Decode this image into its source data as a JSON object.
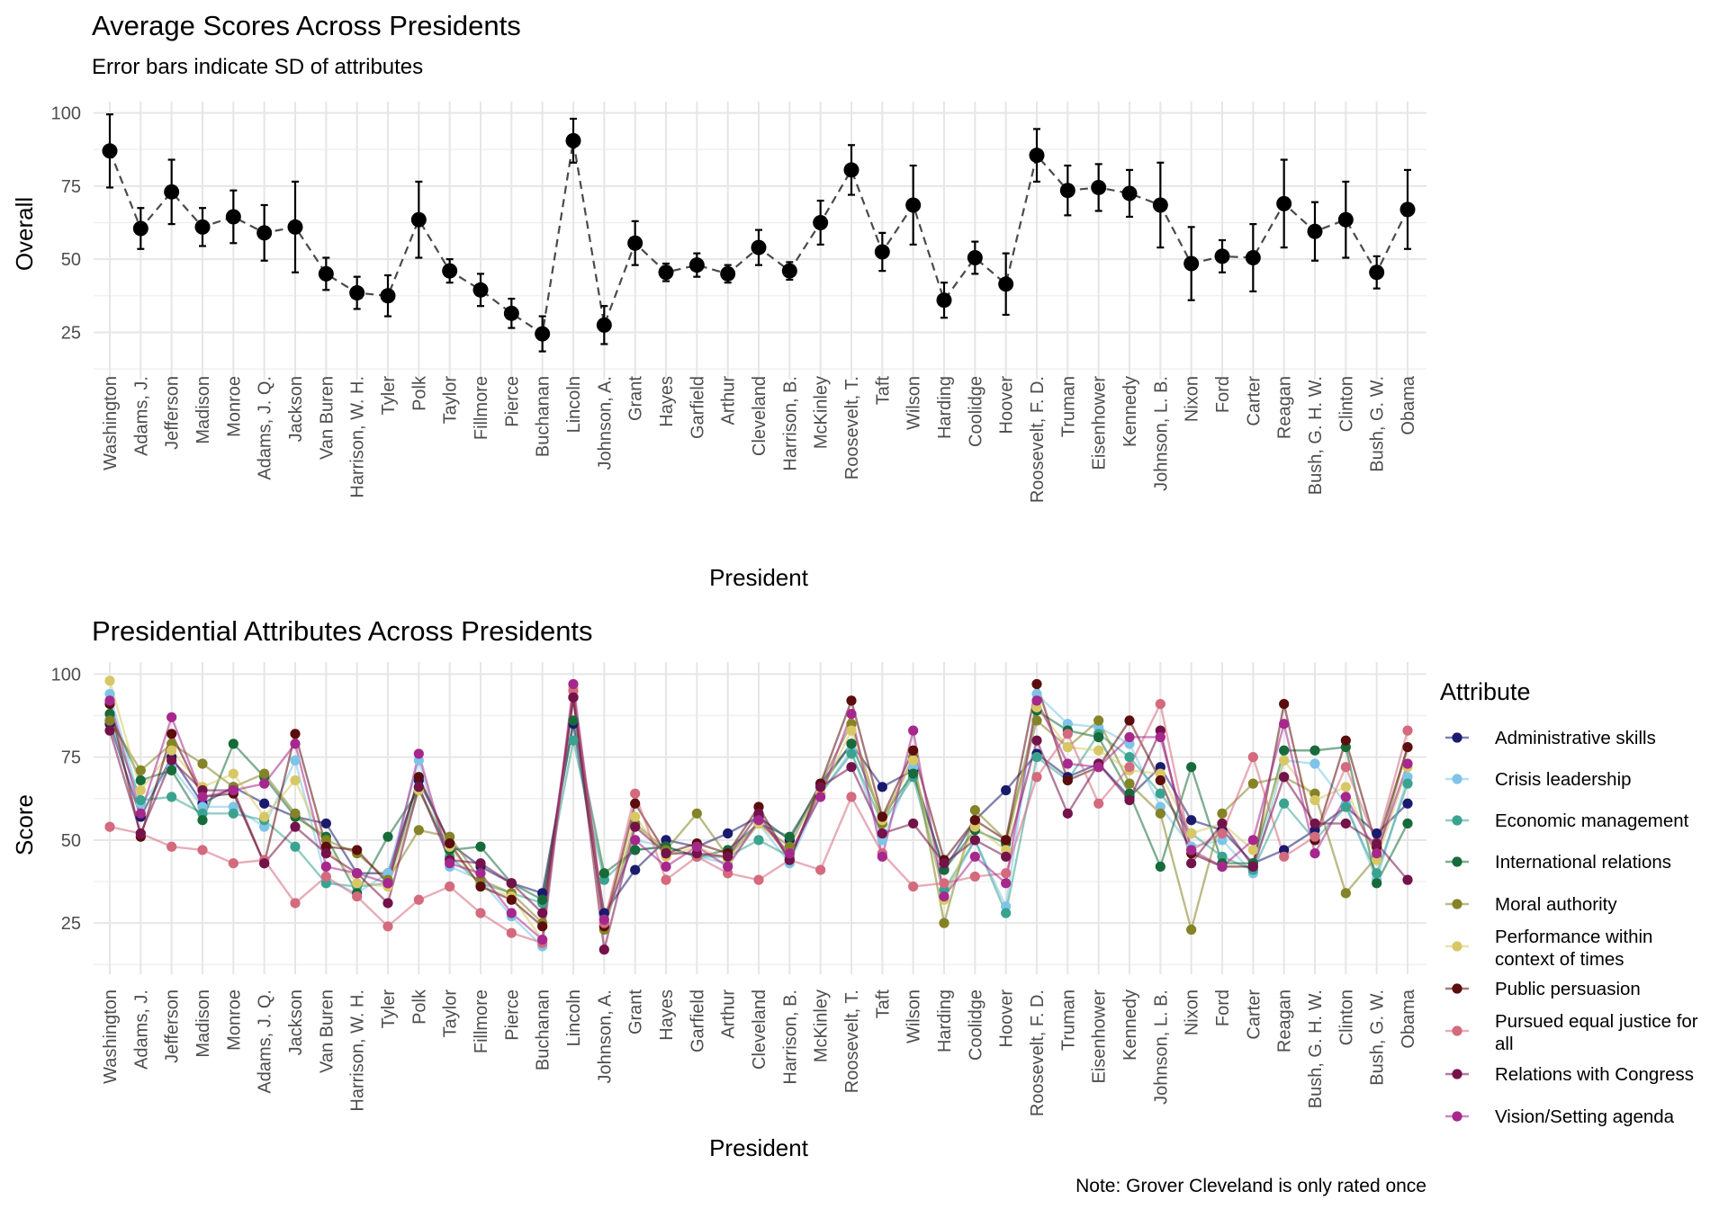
{
  "presidents": [
    "Washington",
    "Adams, J.",
    "Jefferson",
    "Madison",
    "Monroe",
    "Adams, J. Q.",
    "Jackson",
    "Van Buren",
    "Harrison, W. H.",
    "Tyler",
    "Polk",
    "Taylor",
    "Fillmore",
    "Pierce",
    "Buchanan",
    "Lincoln",
    "Johnson, A.",
    "Grant",
    "Hayes",
    "Garfield",
    "Arthur",
    "Cleveland",
    "Harrison, B.",
    "McKinley",
    "Roosevelt, T.",
    "Taft",
    "Wilson",
    "Harding",
    "Coolidge",
    "Hoover",
    "Roosevelt, F. D.",
    "Truman",
    "Eisenhower",
    "Kennedy",
    "Johnson, L. B.",
    "Nixon",
    "Ford",
    "Carter",
    "Reagan",
    "Bush, G. H. W.",
    "Clinton",
    "Bush, G. W.",
    "Obama"
  ],
  "chart_data": [
    {
      "type": "scatter",
      "title": "Average Scores Across Presidents",
      "subtitle": "Error bars indicate SD of attributes",
      "xlabel": "President",
      "ylabel": "Overall",
      "ylim": [
        15,
        102
      ],
      "yticks": [
        25,
        50,
        75,
        100
      ],
      "grid": true,
      "line_style": "dashed",
      "means": [
        87,
        60.5,
        73,
        61,
        64.5,
        59,
        61,
        45,
        38.5,
        37.5,
        63.5,
        46,
        39.5,
        31.5,
        24.5,
        90.5,
        27.5,
        55.5,
        45.5,
        48,
        45,
        54,
        46,
        62.5,
        80.5,
        52.5,
        68.5,
        36,
        50.5,
        41.5,
        85.5,
        73.5,
        74.5,
        72.5,
        68.5,
        48.5,
        51,
        50.5,
        69,
        59.5,
        63.5,
        45.5,
        67
      ],
      "sd": [
        12.5,
        7,
        11,
        6.5,
        9,
        9.5,
        15.5,
        5.5,
        5.5,
        7,
        13,
        4,
        5.5,
        5,
        6,
        7.5,
        6.5,
        7.5,
        3,
        4,
        3,
        6,
        3,
        7.5,
        8.5,
        6.5,
        13.5,
        6,
        5.5,
        10.5,
        9,
        8.5,
        8,
        8,
        14.5,
        12.5,
        5.5,
        11.5,
        15,
        10,
        13,
        5.5,
        13.5
      ]
    },
    {
      "type": "line",
      "title": "Presidential Attributes Across Presidents",
      "xlabel": "President",
      "ylabel": "Score",
      "ylim": [
        15,
        102
      ],
      "yticks": [
        25,
        50,
        75,
        100
      ],
      "grid": true,
      "legend_title": "Attribute",
      "legend_position": "right",
      "series": [
        {
          "name": "Administrative skills",
          "color": "#1a1a6e",
          "values": [
            85,
            57,
            75,
            61,
            66,
            61,
            57,
            55,
            40,
            40,
            68,
            49,
            42,
            37,
            34,
            85,
            28,
            41,
            50,
            48,
            52,
            57,
            50,
            67,
            79,
            66,
            71,
            41,
            56,
            65,
            76,
            69,
            73,
            63,
            72,
            56,
            53,
            43,
            47,
            53,
            60,
            52,
            61
          ]
        },
        {
          "name": "Crisis leadership",
          "color": "#7ec4e8",
          "values": [
            94,
            61,
            72,
            60,
            60,
            54,
            74,
            38,
            34,
            40,
            74,
            42,
            38,
            27,
            18,
            95,
            25,
            50,
            48,
            45,
            43,
            55,
            43,
            64,
            77,
            50,
            72,
            33,
            50,
            30,
            94,
            85,
            84,
            79,
            60,
            48,
            50,
            40,
            74,
            73,
            61,
            38,
            69
          ]
        },
        {
          "name": "Economic management",
          "color": "#3aa38f",
          "values": [
            86,
            62,
            63,
            58,
            58,
            56,
            48,
            37,
            36,
            37,
            66,
            45,
            37,
            34,
            31,
            80,
            38,
            47,
            48,
            45,
            45,
            50,
            45,
            64,
            76,
            55,
            69,
            35,
            50,
            28,
            75,
            68,
            82,
            75,
            64,
            52,
            45,
            41,
            61,
            50,
            60,
            40,
            67
          ]
        },
        {
          "name": "International relations",
          "color": "#176b3a",
          "values": [
            88,
            68,
            71,
            56,
            79,
            69,
            57,
            51,
            34,
            51,
            65,
            47,
            48,
            37,
            32,
            86,
            40,
            47,
            48,
            45,
            47,
            55,
            51,
            66,
            79,
            57,
            70,
            41,
            53,
            49,
            89,
            83,
            81,
            64,
            42,
            72,
            43,
            43,
            77,
            77,
            78,
            37,
            55
          ]
        },
        {
          "name": "Moral authority",
          "color": "#848327",
          "values": [
            86,
            71,
            79,
            73,
            66,
            70,
            58,
            50,
            46,
            38,
            53,
            51,
            38,
            34,
            25,
            93,
            23,
            55,
            47,
            58,
            45,
            55,
            48,
            67,
            85,
            55,
            75,
            25,
            59,
            50,
            86,
            78,
            86,
            67,
            58,
            23,
            58,
            67,
            69,
            64,
            34,
            45,
            78
          ]
        },
        {
          "name": "Performance within context of times",
          "color": "#d8c865",
          "values": [
            98,
            65,
            77,
            66,
            70,
            57,
            68,
            48,
            37,
            36,
            65,
            48,
            36,
            33,
            20,
            96,
            26,
            57,
            45,
            48,
            44,
            55,
            46,
            64,
            83,
            56,
            74,
            32,
            54,
            47,
            90,
            78,
            77,
            71,
            70,
            52,
            55,
            47,
            74,
            62,
            66,
            44,
            72
          ]
        },
        {
          "name": "Public persuasion",
          "color": "#5c0d0d",
          "values": [
            91,
            51,
            82,
            63,
            64,
            43,
            82,
            48,
            47,
            37,
            69,
            49,
            36,
            32,
            24,
            93,
            24,
            61,
            46,
            49,
            46,
            60,
            44,
            67,
            92,
            57,
            77,
            44,
            56,
            50,
            97,
            68,
            72,
            86,
            68,
            46,
            42,
            42,
            91,
            50,
            80,
            48,
            78
          ]
        },
        {
          "name": "Pursued equal justice for all",
          "color": "#d36a7e",
          "values": [
            54,
            52,
            48,
            47,
            43,
            44,
            31,
            39,
            33,
            24,
            32,
            36,
            28,
            22,
            19,
            95,
            25,
            64,
            38,
            45,
            40,
            38,
            44,
            41,
            63,
            46,
            36,
            37,
            39,
            40,
            69,
            82,
            61,
            72,
            91,
            47,
            52,
            75,
            45,
            51,
            72,
            49,
            83
          ]
        },
        {
          "name": "Relations with Congress",
          "color": "#74124a",
          "values": [
            83,
            52,
            74,
            65,
            65,
            43,
            54,
            46,
            40,
            31,
            66,
            44,
            43,
            37,
            28,
            93,
            17,
            54,
            46,
            46,
            45,
            58,
            44,
            66,
            72,
            52,
            55,
            43,
            50,
            45,
            80,
            58,
            73,
            62,
            83,
            43,
            55,
            42,
            69,
            55,
            55,
            49,
            38
          ]
        },
        {
          "name": "Vision/Setting agenda",
          "color": "#a6288d",
          "values": [
            92,
            58,
            87,
            63,
            65,
            67,
            79,
            42,
            40,
            37,
            76,
            43,
            40,
            28,
            20,
            97,
            26,
            50,
            42,
            48,
            42,
            56,
            46,
            63,
            88,
            45,
            83,
            33,
            45,
            37,
            92,
            73,
            72,
            81,
            81,
            47,
            42,
            50,
            85,
            46,
            63,
            46,
            73
          ]
        }
      ],
      "note": "Note: Grover Cleveland is only rated once"
    }
  ]
}
